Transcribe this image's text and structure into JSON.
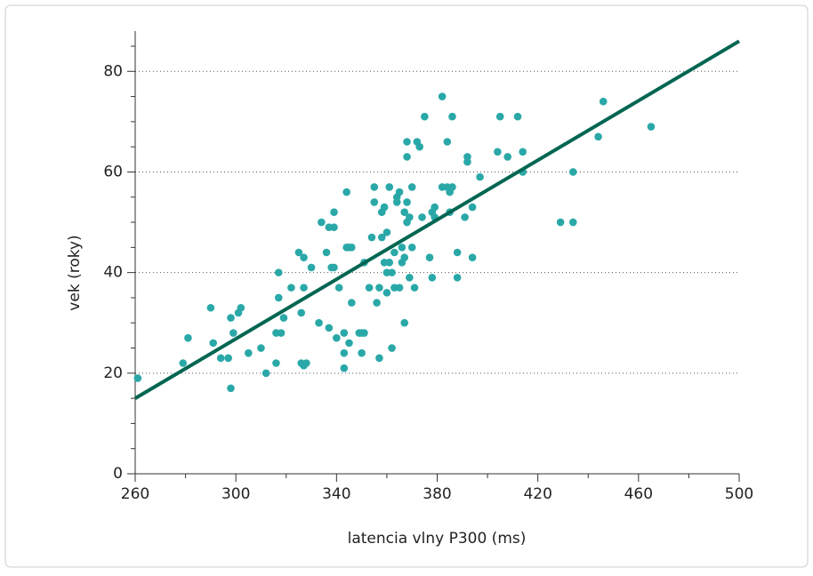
{
  "chart_data": {
    "type": "scatter",
    "xlabel": "latencia vlny P300 (ms)",
    "ylabel": "vek (roky)",
    "xlim": [
      260,
      500
    ],
    "ylim": [
      0,
      88
    ],
    "xticks": [
      260,
      300,
      340,
      380,
      420,
      460,
      500
    ],
    "yticks": [
      0,
      20,
      40,
      60,
      80
    ],
    "xminorticks": [
      280,
      320,
      360,
      400,
      440,
      480
    ],
    "yminorticks": [
      5,
      10,
      15,
      25,
      30,
      35,
      45,
      50,
      55,
      65,
      70,
      75,
      85
    ],
    "grid": true,
    "series": [
      {
        "color": "#2aa8a8",
        "x": [
          261,
          279,
          281,
          290,
          291,
          294,
          297,
          298,
          298,
          299,
          301,
          302,
          305,
          310,
          312,
          316,
          316,
          317,
          317,
          318,
          319,
          322,
          325,
          326,
          326,
          327,
          327,
          327,
          328,
          330,
          333,
          334,
          336,
          337,
          337,
          338,
          339,
          339,
          339,
          340,
          341,
          343,
          343,
          343,
          344,
          344,
          345,
          345,
          346,
          346,
          349,
          350,
          350,
          351,
          351,
          353,
          354,
          355,
          355,
          356,
          357,
          357,
          358,
          358,
          359,
          359,
          360,
          360,
          360,
          361,
          361,
          362,
          362,
          363,
          363,
          364,
          364,
          365,
          365,
          366,
          366,
          367,
          367,
          367,
          368,
          368,
          368,
          368,
          369,
          369,
          370,
          370,
          371,
          372,
          373,
          374,
          375,
          377,
          378,
          378,
          379,
          379,
          382,
          382,
          384,
          384,
          385,
          385,
          386,
          386,
          388,
          388,
          391,
          392,
          392,
          394,
          394,
          397,
          404,
          405,
          408,
          412,
          414,
          414,
          429,
          434,
          434,
          444,
          446,
          465
        ],
        "values": [
          19,
          22,
          27,
          33,
          26,
          23,
          23,
          31,
          17,
          28,
          32,
          33,
          24,
          25,
          20,
          22,
          28,
          35,
          40,
          28,
          31,
          37,
          44,
          32,
          22,
          21.5,
          43,
          37,
          22,
          41,
          30,
          50,
          44,
          29,
          49,
          41,
          41,
          49,
          52,
          27,
          37,
          28,
          24,
          21,
          56,
          45,
          26,
          45,
          34,
          45,
          28,
          24,
          28,
          42,
          28,
          37,
          47,
          54,
          57,
          34,
          23,
          37,
          47,
          52,
          42,
          53,
          36,
          48,
          40,
          57,
          42,
          25,
          40,
          44,
          37,
          54,
          55,
          37,
          56,
          42,
          45,
          30,
          43,
          52,
          63,
          54,
          50,
          66,
          39,
          51,
          57,
          45,
          37,
          66,
          65,
          51,
          71,
          43,
          39,
          52,
          51,
          53,
          57,
          75,
          57,
          66,
          52,
          56,
          57,
          71,
          44,
          39,
          51,
          63,
          62,
          53,
          43,
          59,
          64,
          71,
          63,
          71,
          64,
          60,
          50,
          50,
          60,
          67,
          74,
          69
        ]
      }
    ],
    "fit": {
      "color": "#006652",
      "x": [
        260,
        500
      ],
      "y": [
        15,
        86
      ]
    }
  }
}
